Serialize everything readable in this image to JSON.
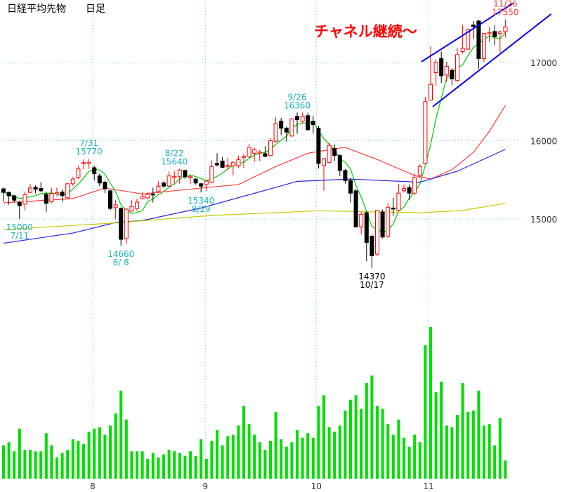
{
  "header": {
    "instrument": "日経平均先物",
    "period": "日足"
  },
  "chart_data": {
    "type": "candlestick",
    "title": "日経平均先物　日足",
    "y_axis": {
      "ticks": [
        15000,
        16000,
        17000
      ],
      "labels": [
        "15000",
        "16000",
        "17000"
      ],
      "position": "right"
    },
    "x_axis": {
      "month_ticks": [
        {
          "label": "8",
          "index": 16.7
        },
        {
          "label": "9",
          "index": 37.8
        },
        {
          "label": "10",
          "index": 58.6
        },
        {
          "label": "11",
          "index": 79.6
        }
      ]
    },
    "grid": true,
    "candles": [
      [
        15385,
        15400,
        15220,
        15340
      ],
      [
        15340,
        15350,
        15180,
        15295
      ],
      [
        15295,
        15310,
        15210,
        15240
      ],
      [
        15210,
        15230,
        15000,
        15170
      ],
      [
        15190,
        15350,
        15110,
        15310
      ],
      [
        15340,
        15450,
        15330,
        15395
      ],
      [
        15405,
        15430,
        15330,
        15380
      ],
      [
        15390,
        15470,
        15340,
        15360
      ],
      [
        15315,
        15350,
        15090,
        15200
      ],
      [
        15220,
        15400,
        15200,
        15325
      ],
      [
        15320,
        15400,
        15290,
        15335
      ],
      [
        15345,
        15380,
        15220,
        15300
      ],
      [
        15270,
        15460,
        15260,
        15450
      ],
      [
        15450,
        15540,
        15420,
        15510
      ],
      [
        15530,
        15680,
        15510,
        15640
      ],
      [
        15710,
        15760,
        15640,
        15720
      ],
      [
        15715,
        15770,
        15640,
        15725
      ],
      [
        15655,
        15680,
        15490,
        15580
      ],
      [
        15550,
        15580,
        15420,
        15460
      ],
      [
        15470,
        15490,
        15330,
        15385
      ],
      [
        15360,
        15370,
        15110,
        15135
      ],
      [
        15145,
        15240,
        15000,
        15180
      ],
      [
        15135,
        15150,
        14660,
        14740
      ],
      [
        14750,
        15140,
        14680,
        15125
      ],
      [
        15100,
        15240,
        15090,
        15160
      ],
      [
        15135,
        15260,
        15100,
        15215
      ],
      [
        15260,
        15340,
        15250,
        15290
      ],
      [
        15270,
        15340,
        15250,
        15315
      ],
      [
        15320,
        15400,
        15210,
        15310
      ],
      [
        15350,
        15480,
        15330,
        15420
      ],
      [
        15460,
        15480,
        15400,
        15420
      ],
      [
        15420,
        15610,
        15410,
        15550
      ],
      [
        15535,
        15610,
        15440,
        15545
      ],
      [
        15540,
        15640,
        15450,
        15625
      ],
      [
        15620,
        15630,
        15510,
        15540
      ],
      [
        15530,
        15570,
        15450,
        15540
      ],
      [
        15510,
        15520,
        15440,
        15460
      ],
      [
        15450,
        15460,
        15340,
        15420
      ],
      [
        15440,
        15500,
        15360,
        15485
      ],
      [
        15470,
        15750,
        15460,
        15670
      ],
      [
        15710,
        15840,
        15670,
        15690
      ],
      [
        15740,
        15790,
        15650,
        15660
      ],
      [
        15675,
        15780,
        15630,
        15685
      ],
      [
        15680,
        15740,
        15560,
        15720
      ],
      [
        15680,
        15810,
        15650,
        15760
      ],
      [
        15790,
        15830,
        15650,
        15800
      ],
      [
        15800,
        15960,
        15780,
        15915
      ],
      [
        15840,
        15905,
        15730,
        15885
      ],
      [
        15845,
        15880,
        15740,
        15855
      ],
      [
        15835,
        15930,
        15790,
        15800
      ],
      [
        15810,
        16030,
        15800,
        16000
      ],
      [
        15990,
        16300,
        15980,
        16220
      ],
      [
        16250,
        16290,
        16070,
        16160
      ],
      [
        16160,
        16180,
        15990,
        16110
      ],
      [
        16060,
        16290,
        16050,
        16280
      ],
      [
        16310,
        16360,
        16090,
        16270
      ],
      [
        16250,
        16360,
        16220,
        16310
      ],
      [
        16320,
        16360,
        16130,
        16140
      ],
      [
        16250,
        16320,
        16090,
        16205
      ],
      [
        16160,
        16190,
        15645,
        15710
      ],
      [
        15680,
        15780,
        15360,
        15770
      ],
      [
        15720,
        15980,
        15710,
        15940
      ],
      [
        15900,
        15950,
        15740,
        15810
      ],
      [
        15810,
        15830,
        15550,
        15620
      ],
      [
        15620,
        15640,
        15450,
        15490
      ],
      [
        15490,
        15520,
        15210,
        15330
      ],
      [
        15360,
        15380,
        14890,
        14900
      ],
      [
        14900,
        15090,
        14800,
        15060
      ],
      [
        15080,
        15100,
        14460,
        14700
      ],
      [
        14780,
        14800,
        14370,
        14530
      ],
      [
        14550,
        15110,
        14530,
        15110
      ],
      [
        15090,
        15120,
        14750,
        14770
      ],
      [
        14780,
        15200,
        14760,
        15150
      ],
      [
        15140,
        15270,
        15040,
        15130
      ],
      [
        15110,
        15450,
        15100,
        15330
      ],
      [
        15360,
        15440,
        15340,
        15390
      ],
      [
        15400,
        15440,
        15240,
        15330
      ],
      [
        15330,
        15580,
        15310,
        15530
      ],
      [
        15560,
        15700,
        15520,
        15670
      ],
      [
        15710,
        16560,
        15700,
        16500
      ],
      [
        16520,
        17210,
        16510,
        16720
      ],
      [
        16870,
        17040,
        16700,
        17000
      ],
      [
        17050,
        17140,
        16740,
        16830
      ],
      [
        16840,
        17010,
        16750,
        16950
      ],
      [
        16900,
        16930,
        16710,
        16790
      ],
      [
        16770,
        17190,
        16760,
        17100
      ],
      [
        17140,
        17480,
        17110,
        17180
      ],
      [
        17170,
        17430,
        17160,
        17420
      ],
      [
        17480,
        17530,
        17300,
        17460
      ],
      [
        17530,
        17540,
        16920,
        17050
      ],
      [
        17050,
        17380,
        17010,
        17370
      ],
      [
        17370,
        17450,
        17260,
        17380
      ],
      [
        17395,
        17480,
        17220,
        17330
      ],
      [
        17370,
        17410,
        17125,
        17390
      ],
      [
        17395,
        17550,
        17320,
        17455
      ]
    ],
    "candle_format": [
      "open",
      "high",
      "low",
      "close"
    ],
    "volume_relative": [
      22,
      24,
      18,
      33,
      19,
      19,
      18,
      18,
      30,
      22,
      14,
      17,
      19,
      26,
      25,
      23,
      31,
      33,
      34,
      29,
      35,
      43,
      58,
      39,
      18,
      18,
      18,
      13,
      17,
      14,
      16,
      19,
      18,
      17,
      15,
      18,
      15,
      26,
      13,
      25,
      32,
      22,
      28,
      29,
      35,
      48,
      36,
      29,
      24,
      19,
      25,
      44,
      26,
      21,
      24,
      32,
      27,
      30,
      27,
      48,
      55,
      34,
      31,
      35,
      45,
      52,
      55,
      46,
      63,
      68,
      48,
      46,
      36,
      29,
      39,
      27,
      21,
      29,
      24,
      88,
      100,
      57,
      64,
      35,
      34,
      42,
      63,
      44,
      45,
      58,
      35,
      36,
      22,
      40,
      12
    ],
    "moving_averages": [
      {
        "color": "#00cc00",
        "kind": "short",
        "period": 5
      },
      {
        "color": "#ff3a3a",
        "kind": "medium",
        "points": [
          [
            0,
            15206
          ],
          [
            13,
            15260
          ],
          [
            19,
            15395
          ],
          [
            26,
            15320
          ],
          [
            37,
            15395
          ],
          [
            44,
            15440
          ],
          [
            51,
            15670
          ],
          [
            57,
            15840
          ],
          [
            62,
            15895
          ],
          [
            64,
            15915
          ],
          [
            70,
            15760
          ],
          [
            77,
            15555
          ],
          [
            80,
            15510
          ],
          [
            84,
            15630
          ],
          [
            88,
            15850
          ],
          [
            91,
            16120
          ],
          [
            94,
            16450
          ]
        ]
      },
      {
        "color": "#2424e0",
        "kind": "long",
        "points": [
          [
            0,
            14690
          ],
          [
            13,
            14820
          ],
          [
            21,
            14955
          ],
          [
            26,
            14980
          ],
          [
            37,
            15140
          ],
          [
            55,
            15480
          ],
          [
            65,
            15510
          ],
          [
            78,
            15470
          ],
          [
            85,
            15610
          ],
          [
            94,
            15890
          ]
        ]
      },
      {
        "color": "#c8c800",
        "kind": "very-long",
        "points": [
          [
            0,
            14865
          ],
          [
            20,
            14945
          ],
          [
            39,
            15045
          ],
          [
            59,
            15105
          ],
          [
            78,
            15080
          ],
          [
            86,
            15110
          ],
          [
            94,
            15200
          ]
        ]
      }
    ],
    "channel_lines": [
      {
        "color": "#0000ee",
        "from": [
          78.3,
          17010
        ],
        "to": [
          95.4,
          17755
        ]
      },
      {
        "color": "#0000ee",
        "from": [
          80.4,
          16435
        ],
        "to": [
          102.6,
          17620
        ]
      }
    ],
    "annotations": [
      {
        "lines": [
          "7/31",
          "15770"
        ],
        "index": 16,
        "price": 15770,
        "position": "above",
        "color": "#1ab0c0"
      },
      {
        "lines": [
          "15000",
          "7/11"
        ],
        "index": 3,
        "price": 15000,
        "position": "below",
        "color": "#1ab0c0"
      },
      {
        "lines": [
          "14660",
          "8/ 8"
        ],
        "index": 22,
        "price": 14660,
        "position": "below",
        "color": "#1ab0c0"
      },
      {
        "lines": [
          "8/22",
          "15640"
        ],
        "index": 32,
        "price": 15640,
        "position": "above",
        "color": "#1ab0c0"
      },
      {
        "lines": [
          "15340",
          "8/29"
        ],
        "index": 37,
        "price": 15340,
        "position": "below",
        "color": "#1ab0c0"
      },
      {
        "lines": [
          "9/26",
          "16360"
        ],
        "index": 55,
        "price": 16360,
        "position": "above",
        "color": "#1ab0c0"
      },
      {
        "lines": [
          "14370",
          "10/17"
        ],
        "index": 69,
        "price": 14370,
        "position": "below",
        "color": "#000000"
      },
      {
        "lines": [
          "11/26",
          "17550"
        ],
        "index": 94,
        "price": 17550,
        "position": "above",
        "color": "#ff4040"
      }
    ],
    "comment": {
      "text": "チャネル継続～",
      "color": "#ff0000"
    },
    "colors": {
      "up": "#ff0000",
      "down": "#000000",
      "volume": "#00dd00",
      "grid": "#66d8d8",
      "axis_text": "#333333"
    }
  }
}
